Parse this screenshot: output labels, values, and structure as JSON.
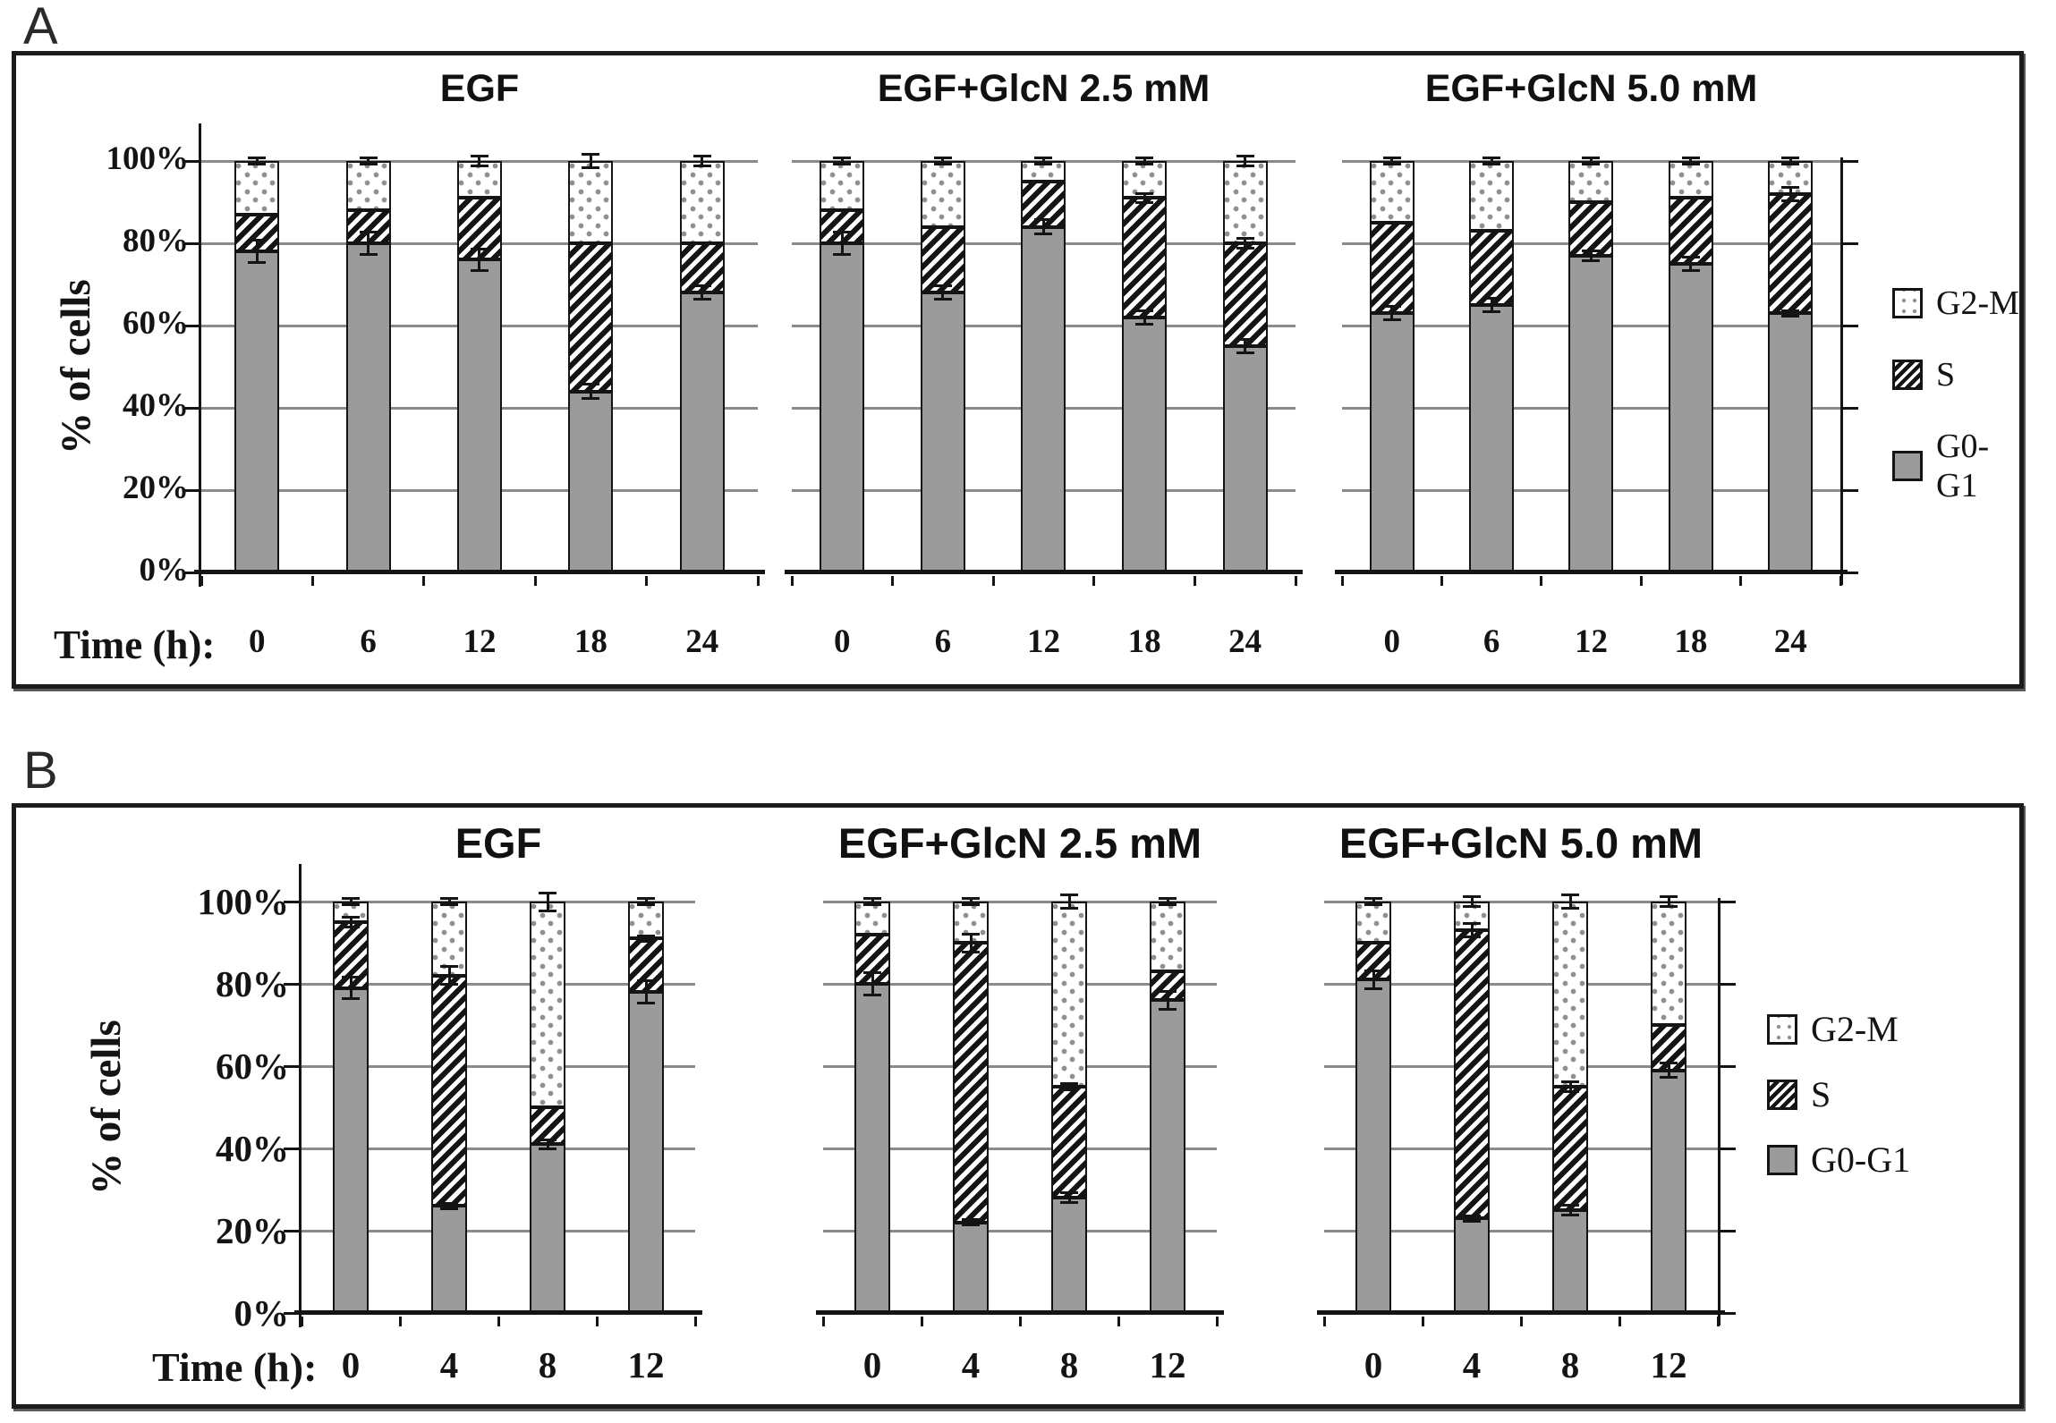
{
  "figure": {
    "panel_letters": [
      "A",
      "B"
    ]
  },
  "chart_data": {
    "type": "bar",
    "subtype": "stacked-percent",
    "unit": "%",
    "ylim": [
      0,
      100
    ],
    "grid": true,
    "legend_position": "right",
    "stack_order_bottom_to_top": [
      "G0-G1",
      "S",
      "G2-M"
    ],
    "colors": {
      "g0g1_fill": "#9b9b9b",
      "pattern_ink": "#141414",
      "dot_ink": "#8f8f8f",
      "grid_line": "#8a8a8a"
    },
    "panels": [
      {
        "label": "A",
        "ylabel": "% of cells",
        "y_tick_labels": [
          "100%",
          "80%",
          "60%",
          "40%",
          "20%",
          "0%"
        ],
        "time_axis_label": "Time (h):",
        "legend": [
          {
            "key": "g2m",
            "label": "G2-M"
          },
          {
            "key": "s",
            "label": "S"
          },
          {
            "key": "g0g1",
            "label": "G0-G1"
          }
        ],
        "charts": [
          {
            "title": "EGF",
            "times": [
              0,
              6,
              12,
              18,
              24
            ],
            "bars": [
              {
                "g0g1": 78,
                "s": 9,
                "g2m": 13,
                "err": [
                  [
                    78,
                    3
                  ],
                  [
                    100,
                    1
                  ]
                ]
              },
              {
                "g0g1": 80,
                "s": 8,
                "g2m": 12,
                "err": [
                  [
                    80,
                    3
                  ],
                  [
                    100,
                    1
                  ]
                ]
              },
              {
                "g0g1": 76,
                "s": 15,
                "g2m": 9,
                "err": [
                  [
                    76,
                    3
                  ],
                  [
                    100,
                    1.5
                  ]
                ]
              },
              {
                "g0g1": 44,
                "s": 36,
                "g2m": 20,
                "err": [
                  [
                    44,
                    2
                  ],
                  [
                    100,
                    2
                  ]
                ]
              },
              {
                "g0g1": 68,
                "s": 12,
                "g2m": 20,
                "err": [
                  [
                    68,
                    2
                  ],
                  [
                    100,
                    1.5
                  ]
                ]
              }
            ]
          },
          {
            "title": "EGF+GlcN 2.5 mM",
            "times": [
              0,
              6,
              12,
              18,
              24
            ],
            "bars": [
              {
                "g0g1": 80,
                "s": 8,
                "g2m": 12,
                "err": [
                  [
                    80,
                    3
                  ],
                  [
                    100,
                    1
                  ]
                ]
              },
              {
                "g0g1": 68,
                "s": 16,
                "g2m": 16,
                "err": [
                  [
                    68,
                    2
                  ],
                  [
                    100,
                    1
                  ]
                ]
              },
              {
                "g0g1": 84,
                "s": 11,
                "g2m": 5,
                "err": [
                  [
                    84,
                    2
                  ],
                  [
                    100,
                    1
                  ]
                ]
              },
              {
                "g0g1": 62,
                "s": 29,
                "g2m": 9,
                "err": [
                  [
                    62,
                    2
                  ],
                  [
                    91,
                    1.5
                  ],
                  [
                    100,
                    1
                  ]
                ]
              },
              {
                "g0g1": 55,
                "s": 25,
                "g2m": 20,
                "err": [
                  [
                    55,
                    2
                  ],
                  [
                    80,
                    1.5
                  ],
                  [
                    100,
                    1.5
                  ]
                ]
              }
            ]
          },
          {
            "title": "EGF+GlcN 5.0 mM",
            "times": [
              0,
              6,
              12,
              18,
              24
            ],
            "bars": [
              {
                "g0g1": 63,
                "s": 22,
                "g2m": 15,
                "err": [
                  [
                    63,
                    2
                  ],
                  [
                    100,
                    1
                  ]
                ]
              },
              {
                "g0g1": 65,
                "s": 18,
                "g2m": 17,
                "err": [
                  [
                    65,
                    2
                  ],
                  [
                    100,
                    1
                  ]
                ]
              },
              {
                "g0g1": 77,
                "s": 13,
                "g2m": 10,
                "err": [
                  [
                    77,
                    1.5
                  ],
                  [
                    100,
                    1
                  ]
                ]
              },
              {
                "g0g1": 75,
                "s": 16,
                "g2m": 9,
                "err": [
                  [
                    75,
                    2
                  ],
                  [
                    100,
                    1
                  ]
                ]
              },
              {
                "g0g1": 63,
                "s": 29,
                "g2m": 8,
                "err": [
                  [
                    63,
                    1
                  ],
                  [
                    92,
                    2
                  ],
                  [
                    100,
                    1
                  ]
                ]
              }
            ]
          }
        ]
      },
      {
        "label": "B",
        "ylabel": "% of cells",
        "y_tick_labels": [
          "100%",
          "80%",
          "60%",
          "40%",
          "20%",
          "0%"
        ],
        "time_axis_label": "Time (h):",
        "legend": [
          {
            "key": "g2m",
            "label": "G2-M"
          },
          {
            "key": "s",
            "label": "S"
          },
          {
            "key": "g0g1",
            "label": "G0-G1"
          }
        ],
        "charts": [
          {
            "title": "EGF",
            "times": [
              0,
              4,
              8,
              12
            ],
            "bars": [
              {
                "g0g1": 79,
                "s": 16,
                "g2m": 5,
                "err": [
                  [
                    79,
                    3
                  ],
                  [
                    95,
                    1.5
                  ],
                  [
                    100,
                    1
                  ]
                ]
              },
              {
                "g0g1": 26,
                "s": 56,
                "g2m": 18,
                "err": [
                  [
                    26,
                    1
                  ],
                  [
                    82,
                    2.5
                  ],
                  [
                    100,
                    1
                  ]
                ]
              },
              {
                "g0g1": 41,
                "s": 9,
                "g2m": 50,
                "err": [
                  [
                    41,
                    1.5
                  ],
                  [
                    100,
                    2.5
                  ]
                ]
              },
              {
                "g0g1": 78,
                "s": 13,
                "g2m": 9,
                "err": [
                  [
                    78,
                    3
                  ],
                  [
                    91,
                    1
                  ],
                  [
                    100,
                    1
                  ]
                ]
              }
            ]
          },
          {
            "title": "EGF+GlcN 2.5 mM",
            "times": [
              0,
              4,
              8,
              12
            ],
            "bars": [
              {
                "g0g1": 80,
                "s": 12,
                "g2m": 8,
                "err": [
                  [
                    80,
                    3
                  ],
                  [
                    100,
                    1
                  ]
                ]
              },
              {
                "g0g1": 22,
                "s": 68,
                "g2m": 10,
                "err": [
                  [
                    22,
                    1
                  ],
                  [
                    90,
                    2.5
                  ],
                  [
                    100,
                    1
                  ]
                ]
              },
              {
                "g0g1": 28,
                "s": 27,
                "g2m": 45,
                "err": [
                  [
                    28,
                    1.5
                  ],
                  [
                    55,
                    1
                  ],
                  [
                    100,
                    2
                  ]
                ]
              },
              {
                "g0g1": 76,
                "s": 7,
                "g2m": 17,
                "err": [
                  [
                    76,
                    2.5
                  ],
                  [
                    100,
                    1
                  ]
                ]
              }
            ]
          },
          {
            "title": "EGF+GlcN 5.0 mM",
            "times": [
              0,
              4,
              8,
              12
            ],
            "bars": [
              {
                "g0g1": 81,
                "s": 9,
                "g2m": 10,
                "err": [
                  [
                    81,
                    2.5
                  ],
                  [
                    100,
                    1
                  ]
                ]
              },
              {
                "g0g1": 23,
                "s": 70,
                "g2m": 7,
                "err": [
                  [
                    23,
                    1
                  ],
                  [
                    93,
                    2
                  ],
                  [
                    100,
                    1.5
                  ]
                ]
              },
              {
                "g0g1": 25,
                "s": 30,
                "g2m": 45,
                "err": [
                  [
                    25,
                    1.5
                  ],
                  [
                    55,
                    1.5
                  ],
                  [
                    100,
                    2
                  ]
                ]
              },
              {
                "g0g1": 59,
                "s": 11,
                "g2m": 30,
                "err": [
                  [
                    59,
                    2
                  ],
                  [
                    100,
                    1.5
                  ]
                ]
              }
            ]
          }
        ]
      }
    ]
  }
}
